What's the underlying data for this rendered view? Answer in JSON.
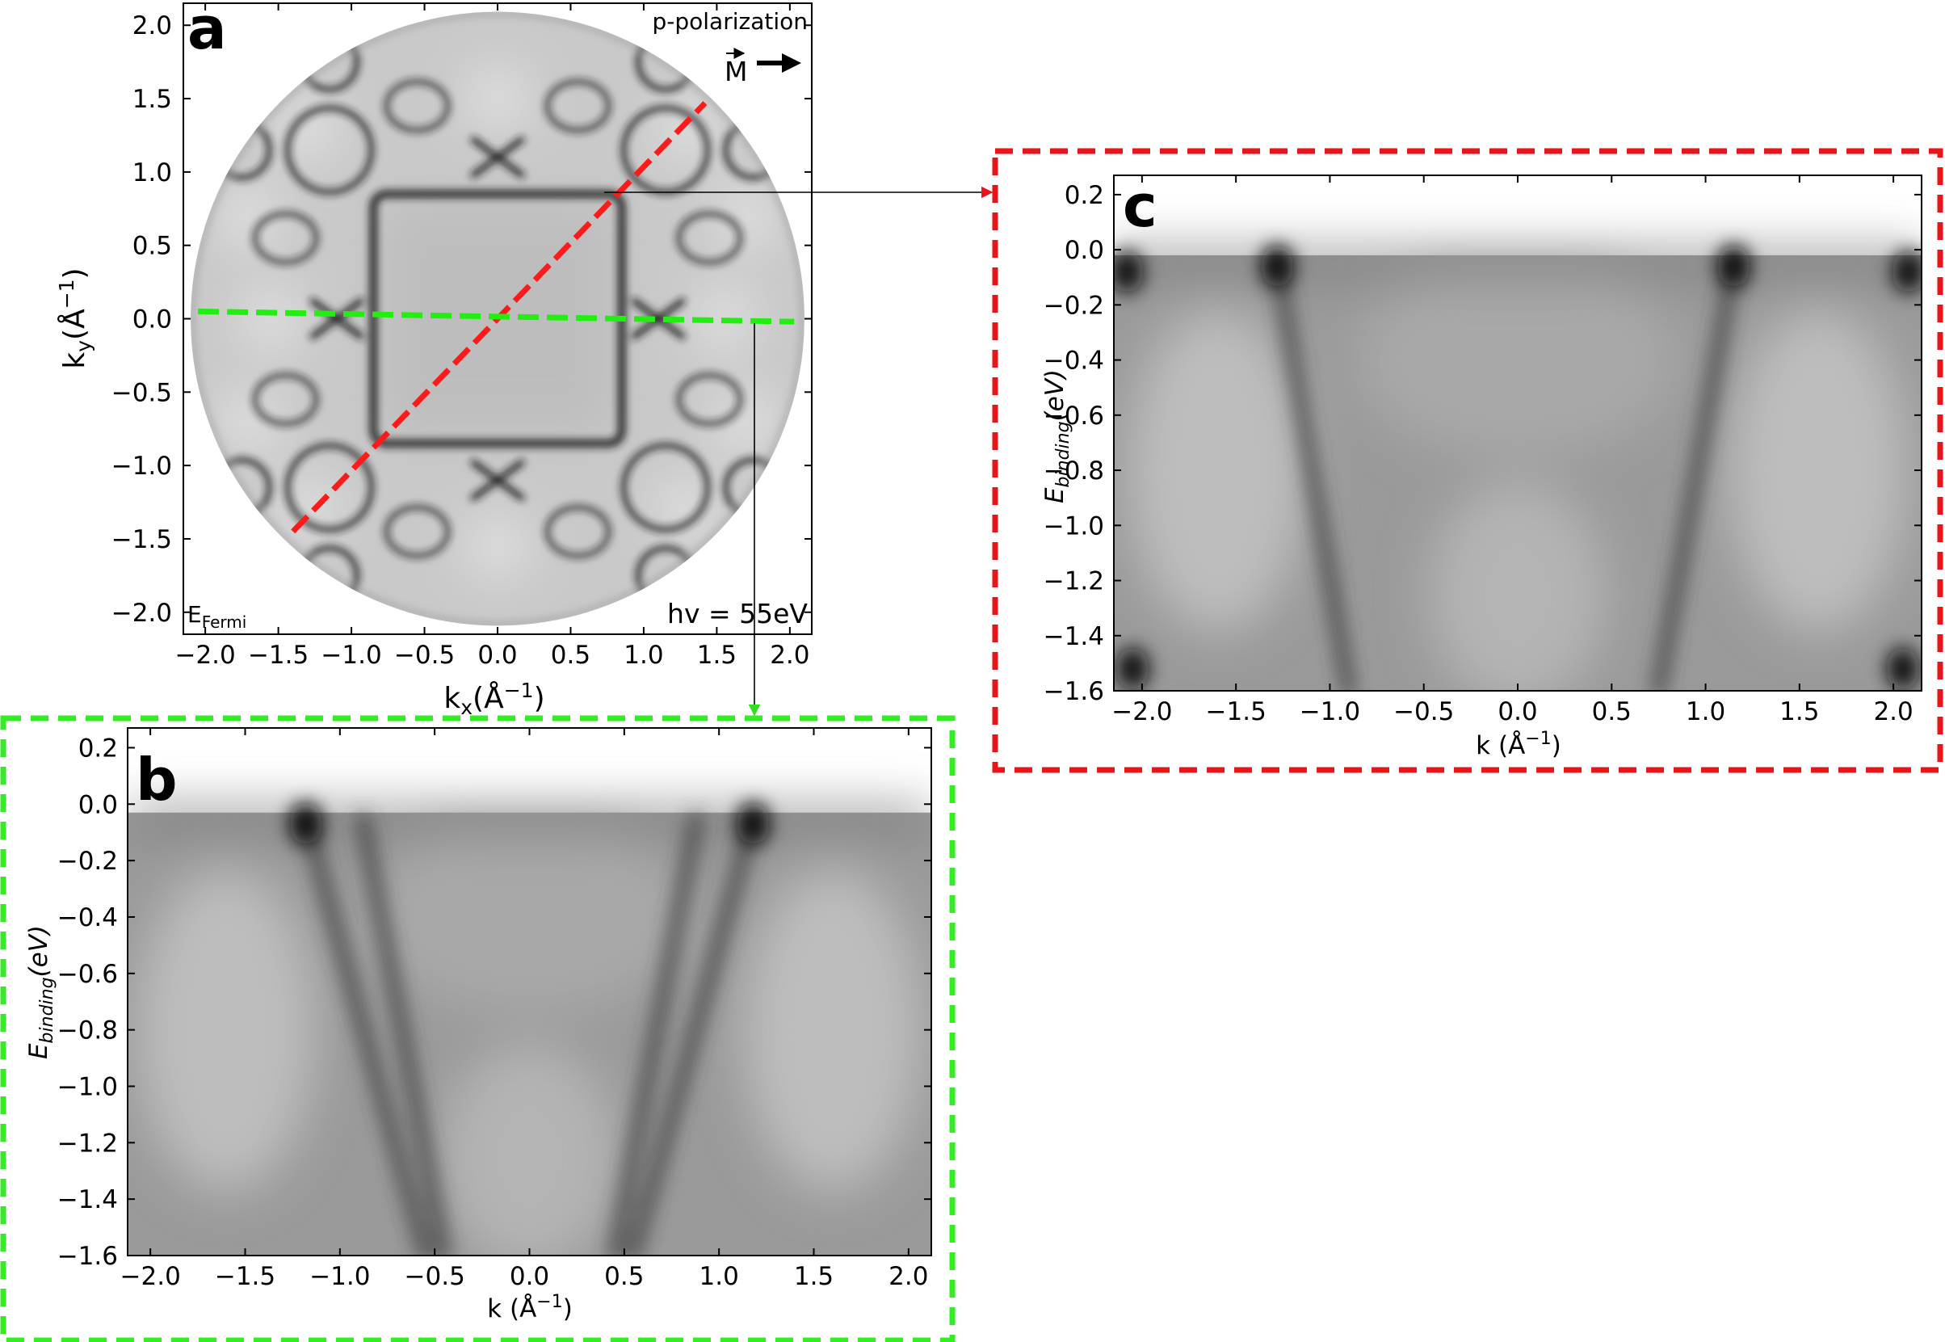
{
  "chart_data": [
    {
      "panel": "a",
      "type": "heatmap",
      "xlabel_main": "k",
      "xlabel_sub": "x",
      "xlabel_unit": "(Å",
      "xlabel_unit_sup": "−1",
      "xlabel_unit_end": ")",
      "ylabel_main": "k",
      "ylabel_sub": "y",
      "ylabel_unit": "(Å",
      "ylabel_unit_sup": "−1",
      "ylabel_unit_end": ")",
      "xlim": [
        -2.15,
        2.15
      ],
      "ylim": [
        -2.15,
        2.15
      ],
      "x_ticks": [
        -2.0,
        -1.5,
        -1.0,
        -0.5,
        0.0,
        0.5,
        1.0,
        1.5,
        2.0
      ],
      "x_tick_labels": [
        "−2.0",
        "−1.5",
        "−1.0",
        "−0.5",
        "0.0",
        "0.5",
        "1.0",
        "1.5",
        "2.0"
      ],
      "y_ticks": [
        -2.0,
        -1.5,
        -1.0,
        -0.5,
        0.0,
        0.5,
        1.0,
        1.5,
        2.0
      ],
      "y_tick_labels": [
        "−2.0",
        "−1.5",
        "−1.0",
        "−0.5",
        "0.0",
        "0.5",
        "1.0",
        "1.5",
        "2.0"
      ],
      "annotations": {
        "polarization": "p-polarization",
        "direction_symbol": "M",
        "energy_main": "E",
        "energy_sub": "Fermi",
        "photon_energy": "hv = 55eV"
      },
      "cuts": [
        {
          "color": "#ff1a1a",
          "x": [
            -1.4,
            1.42
          ],
          "y": [
            -1.45,
            1.47
          ]
        },
        {
          "color": "#22ee11",
          "x": [
            -2.05,
            2.03
          ],
          "y": [
            0.05,
            -0.02
          ]
        }
      ],
      "fermi_surface": {
        "zone_half_width": 0.85,
        "circle_radius": 2.1
      }
    },
    {
      "panel": "b",
      "type": "heatmap",
      "xlabel": "k (Å",
      "xlabel_sup": "−1",
      "xlabel_end": ")",
      "ylabel_main": "E",
      "ylabel_sub": "binding",
      "ylabel_unit": "(eV)",
      "xlim": [
        -2.12,
        2.12
      ],
      "ylim": [
        -1.6,
        0.27
      ],
      "x_ticks": [
        -2.0,
        -1.5,
        -1.0,
        -0.5,
        0.0,
        0.5,
        1.0,
        1.5,
        2.0
      ],
      "x_tick_labels": [
        "−2.0",
        "−1.5",
        "−1.0",
        "−0.5",
        "0.0",
        "0.5",
        "1.0",
        "1.5",
        "2.0"
      ],
      "y_ticks": [
        0.2,
        0.0,
        -0.2,
        -0.4,
        -0.6,
        -0.8,
        -1.0,
        -1.2,
        -1.4,
        -1.6
      ],
      "y_tick_labels": [
        "0.2",
        "0.0",
        "−0.2",
        "−0.4",
        "−0.6",
        "−0.8",
        "−1.0",
        "−1.2",
        "−1.4",
        "−1.6"
      ],
      "fermi_level": -0.03,
      "bands": [
        {
          "k_at_fermi": -1.18,
          "k_at_bottom": -0.55
        },
        {
          "k_at_fermi": -0.88,
          "k_at_bottom": -0.45
        },
        {
          "k_at_fermi": 0.88,
          "k_at_bottom": 0.45
        },
        {
          "k_at_fermi": 1.18,
          "k_at_bottom": 0.55
        }
      ],
      "hot_spots": [
        [
          -1.18,
          -0.07
        ],
        [
          1.18,
          -0.07
        ]
      ]
    },
    {
      "panel": "c",
      "type": "heatmap",
      "xlabel": "k (Å",
      "xlabel_sup": "−1",
      "xlabel_end": ")",
      "ylabel_main": "E",
      "ylabel_sub": "binding",
      "ylabel_unit": "(eV)",
      "xlim": [
        -2.15,
        2.15
      ],
      "ylim": [
        -1.6,
        0.27
      ],
      "x_ticks": [
        -2.0,
        -1.5,
        -1.0,
        -0.5,
        0.0,
        0.5,
        1.0,
        1.5,
        2.0
      ],
      "x_tick_labels": [
        "−2.0",
        "−1.5",
        "−1.0",
        "−0.5",
        "0.0",
        "0.5",
        "1.0",
        "1.5",
        "2.0"
      ],
      "y_ticks": [
        0.2,
        0.0,
        -0.2,
        -0.4,
        -0.6,
        -0.8,
        -1.0,
        -1.2,
        -1.4,
        -1.6
      ],
      "y_tick_labels": [
        "0.2",
        "0.0",
        "−0.2",
        "−0.4",
        "−0.6",
        "−0.8",
        "−1.0",
        "−1.2",
        "−1.4",
        "−1.6"
      ],
      "fermi_level": -0.02,
      "bands": [
        {
          "k_at_fermi": -1.28,
          "k_at_bottom": -0.9
        },
        {
          "k_at_fermi": 1.15,
          "k_at_bottom": 0.75
        }
      ],
      "hot_spots": [
        [
          -1.28,
          -0.06
        ],
        [
          1.15,
          -0.06
        ],
        [
          -2.08,
          -0.08
        ],
        [
          2.08,
          -0.08
        ],
        [
          -2.05,
          -1.52
        ],
        [
          2.05,
          -1.52
        ]
      ]
    }
  ]
}
